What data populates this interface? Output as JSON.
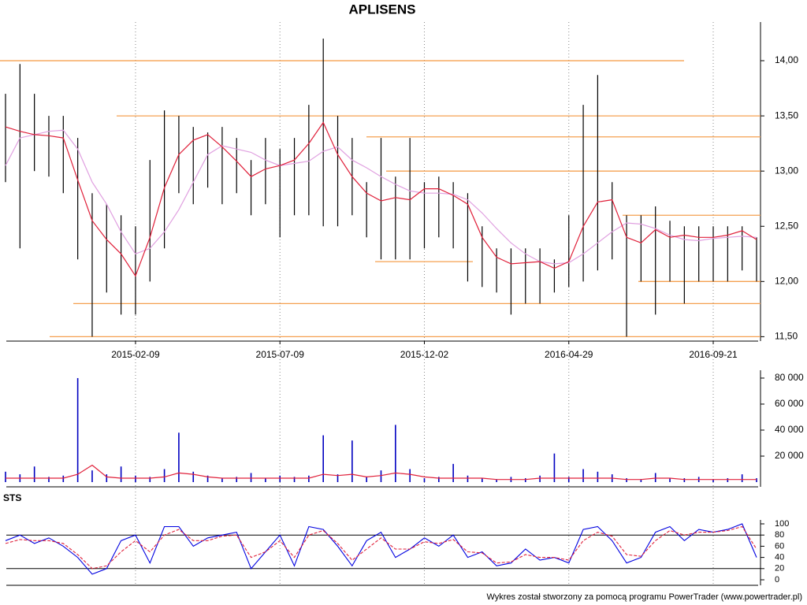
{
  "chart_data": [
    {
      "type": "hilo",
      "title": "APLISENS",
      "categories": [
        null,
        null,
        null,
        null,
        null,
        null,
        null,
        null,
        null,
        "2015-02-09",
        null,
        null,
        null,
        null,
        null,
        null,
        null,
        null,
        null,
        "2015-07-09",
        null,
        null,
        null,
        null,
        null,
        null,
        null,
        null,
        null,
        "2015-12-02",
        null,
        null,
        null,
        null,
        null,
        null,
        null,
        null,
        null,
        "2016-04-29",
        null,
        null,
        null,
        null,
        null,
        null,
        null,
        null,
        null,
        "2016-09-21",
        null,
        null,
        null
      ],
      "high": [
        13.7,
        13.97,
        13.7,
        13.5,
        13.5,
        13.3,
        12.8,
        12.7,
        12.6,
        12.5,
        13.1,
        13.55,
        13.5,
        13.4,
        13.35,
        13.4,
        13.3,
        13.1,
        13.3,
        13.2,
        13.3,
        13.6,
        14.2,
        13.5,
        13.3,
        12.9,
        13.3,
        12.95,
        13.3,
        12.9,
        12.95,
        12.9,
        12.8,
        12.5,
        12.3,
        12.3,
        12.3,
        12.3,
        12.2,
        12.6,
        13.6,
        13.87,
        12.9,
        12.6,
        12.6,
        12.68,
        12.55,
        12.5,
        12.5,
        12.5,
        12.5,
        12.5,
        12.4
      ],
      "low": [
        12.9,
        12.3,
        13.0,
        12.95,
        12.8,
        12.2,
        11.5,
        11.9,
        11.7,
        11.7,
        12.0,
        12.3,
        12.8,
        12.7,
        12.85,
        12.7,
        12.8,
        12.6,
        12.7,
        12.4,
        12.6,
        12.6,
        12.5,
        12.5,
        12.6,
        12.4,
        12.2,
        12.2,
        12.2,
        12.3,
        12.4,
        12.3,
        12.0,
        11.95,
        11.9,
        11.7,
        11.8,
        11.8,
        11.9,
        11.95,
        12.0,
        12.1,
        12.2,
        11.5,
        12.0,
        11.7,
        12.0,
        11.8,
        12.0,
        12.0,
        12.0,
        12.1,
        12.0
      ],
      "series": [
        {
          "color": "#e0203a",
          "values": [
            13.4,
            13.36,
            13.33,
            13.32,
            13.3,
            12.92,
            12.55,
            12.38,
            12.25,
            12.05,
            12.4,
            12.85,
            13.15,
            13.28,
            13.33,
            13.22,
            13.09,
            12.95,
            13.02,
            13.05,
            13.1,
            13.25,
            13.44,
            13.15,
            12.95,
            12.8,
            12.73,
            12.76,
            12.74,
            12.84,
            12.84,
            12.78,
            12.7,
            12.4,
            12.22,
            12.16,
            12.17,
            12.18,
            12.12,
            12.18,
            12.5,
            12.72,
            12.74,
            12.4,
            12.35,
            12.47,
            12.4,
            12.42,
            12.4,
            12.4,
            12.42,
            12.46,
            12.38
          ]
        },
        {
          "color": "#e0a0e0",
          "values": [
            13.05,
            13.3,
            13.33,
            13.36,
            13.37,
            13.2,
            12.9,
            12.7,
            12.45,
            12.25,
            12.3,
            12.45,
            12.65,
            12.9,
            13.15,
            13.23,
            13.2,
            13.17,
            13.1,
            13.05,
            13.07,
            13.09,
            13.18,
            13.22,
            13.1,
            13.03,
            12.95,
            12.88,
            12.82,
            12.8,
            12.8,
            12.79,
            12.74,
            12.62,
            12.48,
            12.35,
            12.25,
            12.18,
            12.16,
            12.17,
            12.25,
            12.35,
            12.45,
            12.53,
            12.52,
            12.48,
            12.42,
            12.38,
            12.37,
            12.39,
            12.4,
            12.41,
            12.4
          ]
        }
      ],
      "levels": [
        14.0,
        13.5,
        13.31,
        13.0,
        12.6,
        12.18,
        12.0,
        11.8,
        11.5
      ],
      "level_color": "#f5a050",
      "bar_color": "#000000",
      "ylim": [
        11.46,
        14.3
      ],
      "yticks": [
        {
          "value": 11.5,
          "label": "11,50"
        },
        {
          "value": 12.0,
          "label": "12,00"
        },
        {
          "value": 12.5,
          "label": "12,50"
        },
        {
          "value": 13.0,
          "label": "13,00"
        },
        {
          "value": 13.5,
          "label": "13,50"
        },
        {
          "value": 14.0,
          "label": "14,00"
        }
      ]
    },
    {
      "type": "bar",
      "values": [
        8000,
        6000,
        12000,
        4000,
        5000,
        80000,
        9000,
        6000,
        12000,
        5000,
        4000,
        10000,
        38000,
        8000,
        5000,
        3000,
        4000,
        7000,
        3000,
        5000,
        4000,
        5000,
        36000,
        6000,
        32000,
        4000,
        9000,
        44000,
        10000,
        3000,
        4000,
        14000,
        5000,
        3000,
        2000,
        4000,
        3000,
        5000,
        22000,
        4000,
        10000,
        8000,
        6000,
        3000,
        2000,
        7000,
        3000,
        3000,
        4000,
        2000,
        3000,
        6000,
        3000
      ],
      "color": "#0000c0",
      "average": {
        "color": "#e0203a",
        "values": [
          3000,
          3000,
          3000,
          3000,
          3000,
          6000,
          13000,
          4000,
          3000,
          3000,
          3000,
          4000,
          7000,
          6000,
          4000,
          3000,
          3000,
          3000,
          3000,
          3000,
          3000,
          3000,
          6000,
          5000,
          6000,
          4000,
          5000,
          7000,
          6000,
          4000,
          3000,
          3000,
          3000,
          3000,
          2000,
          2000,
          2000,
          3000,
          3000,
          3000,
          3000,
          3000,
          3000,
          2000,
          2000,
          3000,
          3000,
          2000,
          2000,
          2000,
          2000,
          2000,
          2000
        ]
      },
      "ylim": [
        0,
        83000
      ],
      "yticks": [
        {
          "value": 20000,
          "label": "20 000"
        },
        {
          "value": 40000,
          "label": "40 000"
        },
        {
          "value": 60000,
          "label": "60 000"
        },
        {
          "value": 80000,
          "label": "80 000"
        }
      ]
    },
    {
      "type": "line",
      "title": "STS",
      "series": [
        {
          "color": "#0000e0",
          "values": [
            70,
            80,
            65,
            75,
            60,
            40,
            10,
            20,
            70,
            80,
            30,
            95,
            95,
            60,
            75,
            80,
            85,
            20,
            50,
            80,
            25,
            95,
            90,
            60,
            25,
            70,
            85,
            40,
            55,
            75,
            60,
            80,
            40,
            50,
            25,
            30,
            55,
            35,
            40,
            30,
            90,
            95,
            70,
            30,
            40,
            85,
            95,
            70,
            90,
            85,
            90,
            100,
            40
          ]
        },
        {
          "color": "#e0203a",
          "values": [
            65,
            72,
            70,
            70,
            65,
            45,
            20,
            25,
            50,
            70,
            50,
            80,
            90,
            70,
            70,
            78,
            80,
            40,
            50,
            70,
            40,
            80,
            88,
            65,
            35,
            55,
            75,
            55,
            55,
            68,
            65,
            72,
            50,
            48,
            30,
            32,
            45,
            40,
            40,
            35,
            70,
            85,
            78,
            45,
            42,
            70,
            88,
            80,
            85,
            85,
            88,
            95,
            55
          ]
        }
      ],
      "levels": [
        20,
        80
      ],
      "ylim": [
        0,
        100
      ],
      "yticks": [
        0,
        20,
        40,
        60,
        80,
        100
      ]
    }
  ],
  "footer": "Wykres został stworzony za pomocą programu PowerTrader (www.powertrader.pl)"
}
